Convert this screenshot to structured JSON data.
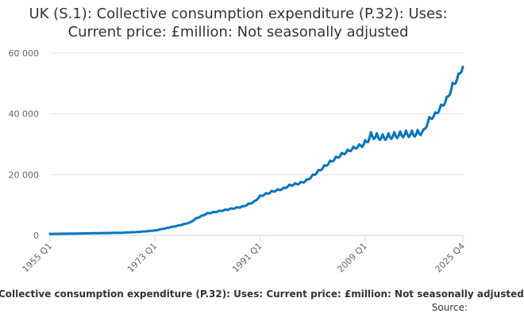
{
  "chart_data": {
    "type": "line",
    "title": "UK (S.1): Collective consumption expenditure (P.32): Uses: Current price: £million: Not seasonally adjusted",
    "title_lines": [
      "UK (S.1): Collective consumption expenditure (P.32): Uses:",
      "Current price: £million: Not seasonally adjusted"
    ],
    "xlabel": "",
    "ylabel": "",
    "ylim": [
      0,
      60000
    ],
    "y_ticks": [
      0,
      20000,
      40000,
      60000
    ],
    "y_tick_labels": [
      "0",
      "20 000",
      "40 000",
      "60 000"
    ],
    "x_tick_labels": [
      "1955 Q1",
      "1973 Q1",
      "1991 Q1",
      "2009 Q1",
      "2025 Q4"
    ],
    "grid": true,
    "legend": "bottom",
    "series": [
      {
        "name": "Collective consumption expenditure (P.32): Uses: Current price: £million: Not seasonally adjusted",
        "color": "#0075c2",
        "x": [
          "1955 Q1",
          "1958 Q1",
          "1961 Q1",
          "1964 Q1",
          "1967 Q1",
          "1970 Q1",
          "1973 Q1",
          "1975 Q1",
          "1977 Q1",
          "1979 Q1",
          "1980 Q1",
          "1982 Q1",
          "1985 Q1",
          "1988 Q1",
          "1990 Q1",
          "1991 Q1",
          "1993 Q1",
          "1995 Q1",
          "1996 Q1",
          "1998 Q1",
          "1999 Q1",
          "2001 Q1",
          "2003 Q1",
          "2005 Q1",
          "2007 Q1",
          "2009 Q1",
          "2010 Q1",
          "2012 Q1",
          "2014 Q1",
          "2016 Q1",
          "2017 Q1",
          "2018 Q1",
          "2019 Q1",
          "2020 Q1",
          "2021 Q1",
          "2022 Q1",
          "2023 Q1",
          "2024 Q1",
          "2025 Q1",
          "2025 Q4"
        ],
        "values": [
          500,
          550,
          650,
          750,
          850,
          1100,
          1600,
          2400,
          3200,
          4200,
          5500,
          7200,
          8300,
          9400,
          11000,
          12800,
          14300,
          15300,
          16300,
          17200,
          18000,
          21000,
          24000,
          26500,
          28500,
          30000,
          32500,
          31800,
          32500,
          33000,
          33000,
          33200,
          34000,
          38000,
          39500,
          42000,
          44500,
          49000,
          52000,
          55500
        ]
      }
    ],
    "source_label": "Source:"
  },
  "legend": {
    "text": "Collective consumption expenditure (P.32): Uses: Current price: £million: Not seasonally adjusted"
  }
}
